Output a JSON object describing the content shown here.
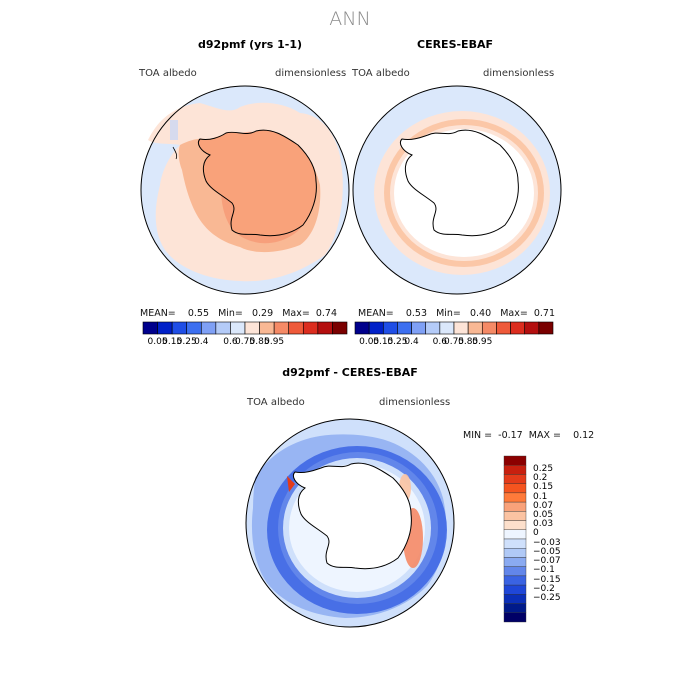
{
  "page_title": "ANN",
  "panels": [
    {
      "title": "d92pmf (yrs 1-1)",
      "left_label": "TOA albedo",
      "right_label": "dimensionless",
      "stats": {
        "mean_label": "MEAN=",
        "mean": "0.55",
        "min_label": "Min=",
        "min": "0.29",
        "max_label": "Max=",
        "max": "0.74"
      }
    },
    {
      "title": "CERES-EBAF",
      "left_label": "TOA albedo",
      "right_label": "dimensionless",
      "stats": {
        "mean_label": "MEAN=",
        "mean": "0.53",
        "min_label": "Min=",
        "min": "0.40",
        "max_label": "Max=",
        "max": "0.71"
      }
    }
  ],
  "abs_colorbar": {
    "colors": [
      "#00008c",
      "#0020c8",
      "#1f4ee6",
      "#3c6ff0",
      "#7fa0f5",
      "#b4cbf8",
      "#dbe8fb",
      "#fde4d7",
      "#f9b894",
      "#f58a66",
      "#ef5a3a",
      "#dc2d1f",
      "#b40f0f",
      "#7a0000"
    ],
    "labels": [
      "0.05",
      "0.15",
      "0.25",
      "0.4",
      "0.6",
      "0.75",
      "0.85",
      "0.95"
    ]
  },
  "diff_panel": {
    "title": "d92pmf - CERES-EBAF",
    "left_label": "TOA albedo",
    "right_label": "dimensionless",
    "min_label": "MIN =",
    "min": "-0.17",
    "max_label": "MAX =",
    "max": "0.12"
  },
  "diff_colorbar": {
    "colors": [
      "#8b0000",
      "#c8200f",
      "#e43b1a",
      "#f5541f",
      "#ff7a3a",
      "#f9a27a",
      "#fbc3a2",
      "#fde0cc",
      "#eef5ff",
      "#cfe0fb",
      "#b0c9f6",
      "#8aaaf1",
      "#6286ea",
      "#3a63e3",
      "#1f47d8",
      "#0b2fb8",
      "#001a8a",
      "#000066"
    ],
    "labels": [
      "0.25",
      "0.2",
      "0.15",
      "0.1",
      "0.07",
      "0.05",
      "0.03",
      "0",
      "−0.03",
      "−0.05",
      "−0.07",
      "−0.1",
      "−0.15",
      "−0.2",
      "−0.25"
    ]
  },
  "colors": {
    "ocean_fill": "#dbe8fb",
    "land_outline": "#000000"
  }
}
